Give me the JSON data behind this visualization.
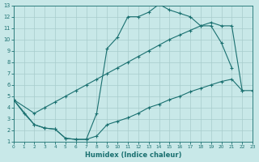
{
  "xlabel": "Humidex (Indice chaleur)",
  "bg_color": "#c8e8e8",
  "grid_color": "#a8cccc",
  "line_color": "#1a7070",
  "xlim": [
    0,
    23
  ],
  "ylim": [
    1,
    13
  ],
  "xticks": [
    0,
    1,
    2,
    3,
    4,
    5,
    6,
    7,
    8,
    9,
    10,
    11,
    12,
    13,
    14,
    15,
    16,
    17,
    18,
    19,
    20,
    21,
    22,
    23
  ],
  "yticks": [
    1,
    2,
    3,
    4,
    5,
    6,
    7,
    8,
    9,
    10,
    11,
    12,
    13
  ],
  "curve1_x": [
    0,
    1,
    2,
    3,
    4,
    5,
    6,
    7,
    8,
    9,
    10,
    11,
    12,
    13,
    14,
    15,
    16,
    17,
    18,
    19,
    20,
    21
  ],
  "curve1_y": [
    4.7,
    3.5,
    2.5,
    2.2,
    2.1,
    1.3,
    1.2,
    1.2,
    3.5,
    9.2,
    10.2,
    12.0,
    12.0,
    12.4,
    13.1,
    12.6,
    12.3,
    12.0,
    11.2,
    11.2,
    9.7,
    7.5
  ],
  "curve2_x": [
    0,
    2,
    3,
    4,
    5,
    6,
    7,
    8,
    9,
    10,
    11,
    12,
    13,
    14,
    15,
    16,
    17,
    18,
    19,
    20,
    21,
    22
  ],
  "curve2_y": [
    4.7,
    3.5,
    4.0,
    4.5,
    5.0,
    5.5,
    6.0,
    6.5,
    7.0,
    7.5,
    8.0,
    8.5,
    9.0,
    9.5,
    10.0,
    10.4,
    10.8,
    11.2,
    11.5,
    11.2,
    11.2,
    5.5
  ],
  "curve3_x": [
    0,
    2,
    3,
    4,
    5,
    6,
    7,
    8,
    9,
    10,
    11,
    12,
    13,
    14,
    15,
    16,
    17,
    18,
    19,
    20,
    21,
    22,
    23
  ],
  "curve3_y": [
    4.7,
    2.5,
    2.2,
    2.1,
    1.3,
    1.2,
    1.2,
    1.5,
    2.5,
    2.8,
    3.1,
    3.5,
    4.0,
    4.3,
    4.7,
    5.0,
    5.4,
    5.7,
    6.0,
    6.3,
    6.5,
    5.5,
    5.5
  ]
}
